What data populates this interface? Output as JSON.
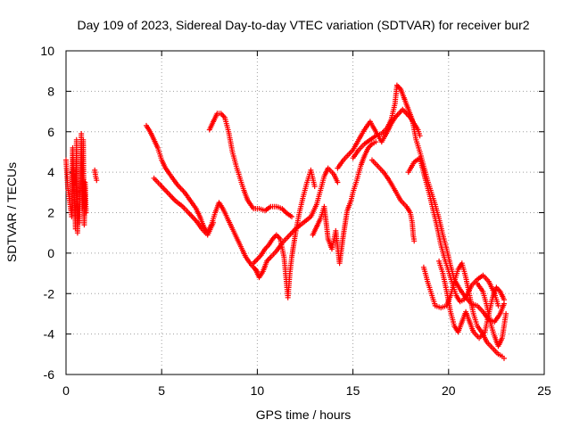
{
  "chart_data": {
    "type": "scatter",
    "title": "Day 109 of 2023, Sidereal Day-to-day VTEC variation (SDTVAR) for receiver bur2",
    "xlabel": "GPS time / hours",
    "ylabel": "SDTVAR / TECUs",
    "xlim": [
      0,
      25
    ],
    "ylim": [
      -6,
      10
    ],
    "xticks": [
      0,
      5,
      10,
      15,
      20,
      25
    ],
    "yticks": [
      -6,
      -4,
      -2,
      0,
      2,
      4,
      6,
      8,
      10
    ],
    "grid": true,
    "marker": "+",
    "color": "#ff0000",
    "series": [
      {
        "name": "s1",
        "points": [
          [
            0.0,
            4.6
          ],
          [
            0.1,
            3.2
          ],
          [
            0.2,
            2.5
          ],
          [
            0.3,
            1.8
          ],
          [
            0.35,
            5.2
          ],
          [
            0.4,
            3.6
          ],
          [
            0.5,
            1.2
          ],
          [
            0.55,
            5.6
          ],
          [
            0.6,
            1.0
          ],
          [
            0.65,
            2.4
          ],
          [
            0.7,
            1.5
          ],
          [
            0.75,
            3.0
          ],
          [
            0.8,
            5.9
          ],
          [
            0.85,
            2.2
          ],
          [
            0.9,
            5.6
          ],
          [
            0.95,
            1.4
          ],
          [
            1.0,
            3.5
          ],
          [
            1.05,
            2.0
          ]
        ]
      },
      {
        "name": "s2",
        "points": [
          [
            1.5,
            4.1
          ],
          [
            1.55,
            3.8
          ],
          [
            1.6,
            3.6
          ]
        ]
      },
      {
        "name": "s3",
        "points": [
          [
            4.2,
            6.3
          ],
          [
            4.4,
            6.0
          ],
          [
            4.6,
            5.6
          ],
          [
            4.8,
            5.2
          ],
          [
            5.0,
            4.6
          ],
          [
            5.2,
            4.2
          ],
          [
            5.5,
            3.8
          ],
          [
            5.8,
            3.4
          ],
          [
            6.2,
            3.0
          ],
          [
            6.5,
            2.6
          ],
          [
            6.8,
            2.2
          ],
          [
            7.0,
            1.8
          ],
          [
            7.2,
            1.3
          ],
          [
            7.4,
            1.0
          ],
          [
            7.6,
            1.4
          ],
          [
            7.8,
            2.0
          ],
          [
            8.0,
            2.5
          ],
          [
            8.2,
            2.2
          ],
          [
            8.5,
            1.6
          ],
          [
            8.8,
            1.0
          ],
          [
            9.1,
            0.4
          ],
          [
            9.4,
            -0.2
          ],
          [
            9.7,
            -0.6
          ],
          [
            10.0,
            -0.9
          ]
        ]
      },
      {
        "name": "s4",
        "points": [
          [
            4.6,
            3.7
          ],
          [
            4.9,
            3.4
          ],
          [
            5.3,
            3.0
          ],
          [
            5.7,
            2.6
          ],
          [
            6.1,
            2.3
          ],
          [
            6.4,
            2.0
          ],
          [
            6.8,
            1.6
          ],
          [
            7.1,
            1.2
          ],
          [
            7.4,
            0.9
          ],
          [
            7.7,
            1.5
          ]
        ]
      },
      {
        "name": "s5",
        "points": [
          [
            7.5,
            6.1
          ],
          [
            7.7,
            6.5
          ],
          [
            7.9,
            6.9
          ],
          [
            8.1,
            6.9
          ],
          [
            8.3,
            6.7
          ],
          [
            8.5,
            6.0
          ],
          [
            8.7,
            5.0
          ],
          [
            8.9,
            4.3
          ],
          [
            9.1,
            3.7
          ],
          [
            9.3,
            3.1
          ],
          [
            9.5,
            2.6
          ],
          [
            9.8,
            2.2
          ],
          [
            10.1,
            2.2
          ],
          [
            10.4,
            2.1
          ],
          [
            10.7,
            2.3
          ],
          [
            11.0,
            2.3
          ],
          [
            11.3,
            2.2
          ],
          [
            11.5,
            2.0
          ],
          [
            11.8,
            1.8
          ]
        ]
      },
      {
        "name": "s6",
        "points": [
          [
            9.8,
            -0.5
          ],
          [
            10.0,
            -0.3
          ],
          [
            10.2,
            -0.1
          ],
          [
            10.4,
            0.2
          ],
          [
            10.6,
            0.4
          ],
          [
            10.8,
            0.7
          ],
          [
            11.0,
            0.9
          ],
          [
            11.2,
            0.7
          ],
          [
            11.4,
            -0.2
          ],
          [
            11.5,
            -1.2
          ],
          [
            11.6,
            -2.2
          ],
          [
            11.7,
            -1.0
          ],
          [
            11.8,
            -0.2
          ],
          [
            12.0,
            1.0
          ],
          [
            12.2,
            2.0
          ],
          [
            12.4,
            2.8
          ],
          [
            12.6,
            3.5
          ],
          [
            12.8,
            4.1
          ],
          [
            13.0,
            3.3
          ]
        ]
      },
      {
        "name": "s7",
        "points": [
          [
            9.9,
            -0.8
          ],
          [
            10.1,
            -1.2
          ],
          [
            10.3,
            -0.9
          ],
          [
            10.5,
            -0.4
          ],
          [
            10.7,
            -0.2
          ],
          [
            11.0,
            0.1
          ],
          [
            11.3,
            0.5
          ],
          [
            11.6,
            0.8
          ],
          [
            12.0,
            1.2
          ],
          [
            12.4,
            1.5
          ],
          [
            12.8,
            1.8
          ],
          [
            13.1,
            2.4
          ],
          [
            13.3,
            3.1
          ],
          [
            13.5,
            3.8
          ],
          [
            13.7,
            4.2
          ],
          [
            14.0,
            3.9
          ],
          [
            14.2,
            3.5
          ]
        ]
      },
      {
        "name": "s8",
        "points": [
          [
            12.9,
            0.9
          ],
          [
            13.1,
            1.3
          ],
          [
            13.3,
            1.7
          ],
          [
            13.5,
            2.3
          ],
          [
            13.7,
            0.7
          ],
          [
            13.9,
            0.2
          ],
          [
            14.1,
            1.1
          ],
          [
            14.3,
            -0.5
          ],
          [
            14.5,
            0.9
          ],
          [
            14.7,
            2.1
          ],
          [
            14.9,
            2.6
          ],
          [
            15.0,
            3.0
          ],
          [
            15.2,
            3.6
          ],
          [
            15.4,
            4.3
          ],
          [
            15.6,
            4.8
          ],
          [
            15.8,
            5.2
          ],
          [
            16.0,
            5.4
          ],
          [
            16.2,
            5.5
          ]
        ]
      },
      {
        "name": "s9",
        "points": [
          [
            14.2,
            4.2
          ],
          [
            14.5,
            4.6
          ],
          [
            14.8,
            4.9
          ],
          [
            15.0,
            5.1
          ],
          [
            15.3,
            5.6
          ],
          [
            15.6,
            6.1
          ],
          [
            15.9,
            6.5
          ],
          [
            16.2,
            6.0
          ],
          [
            16.5,
            5.5
          ],
          [
            16.8,
            6.0
          ],
          [
            17.0,
            6.4
          ],
          [
            17.2,
            6.7
          ],
          [
            17.4,
            6.9
          ],
          [
            17.6,
            7.1
          ],
          [
            17.8,
            6.9
          ],
          [
            18.0,
            6.7
          ],
          [
            18.2,
            6.4
          ],
          [
            18.4,
            6.1
          ],
          [
            18.5,
            5.8
          ]
        ]
      },
      {
        "name": "s10",
        "points": [
          [
            15.0,
            4.7
          ],
          [
            15.3,
            5.1
          ],
          [
            15.6,
            5.4
          ],
          [
            15.9,
            5.6
          ],
          [
            16.2,
            5.8
          ],
          [
            16.5,
            5.9
          ],
          [
            16.8,
            6.2
          ],
          [
            17.0,
            6.6
          ],
          [
            17.2,
            7.4
          ],
          [
            17.3,
            8.3
          ],
          [
            17.5,
            8.1
          ],
          [
            17.7,
            7.6
          ],
          [
            17.9,
            7.1
          ],
          [
            18.1,
            6.6
          ],
          [
            18.3,
            5.6
          ],
          [
            18.5,
            5.0
          ],
          [
            18.7,
            4.3
          ],
          [
            18.9,
            3.6
          ],
          [
            19.1,
            3.0
          ],
          [
            19.3,
            2.4
          ],
          [
            19.5,
            1.7
          ],
          [
            19.7,
            0.9
          ],
          [
            19.9,
            0.2
          ],
          [
            20.1,
            -0.6
          ],
          [
            20.3,
            -1.3
          ],
          [
            20.6,
            -1.8
          ],
          [
            20.9,
            -2.2
          ],
          [
            21.2,
            -2.5
          ],
          [
            21.5,
            -2.6
          ],
          [
            21.8,
            -2.9
          ],
          [
            22.1,
            -3.3
          ],
          [
            22.4,
            -3.4
          ],
          [
            22.7,
            -3.0
          ],
          [
            22.9,
            -2.5
          ]
        ]
      },
      {
        "name": "s11",
        "points": [
          [
            16.0,
            4.6
          ],
          [
            16.3,
            4.3
          ],
          [
            16.6,
            4.0
          ],
          [
            16.9,
            3.6
          ],
          [
            17.2,
            3.1
          ],
          [
            17.5,
            2.6
          ],
          [
            17.8,
            2.3
          ],
          [
            18.0,
            2.0
          ],
          [
            18.1,
            1.5
          ],
          [
            18.15,
            0.9
          ],
          [
            18.2,
            0.6
          ]
        ]
      },
      {
        "name": "s12",
        "points": [
          [
            17.9,
            4.0
          ],
          [
            18.2,
            4.5
          ],
          [
            18.5,
            4.7
          ],
          [
            18.8,
            3.6
          ],
          [
            19.0,
            2.9
          ],
          [
            19.2,
            2.1
          ],
          [
            19.4,
            1.3
          ],
          [
            19.6,
            0.4
          ],
          [
            19.8,
            -0.3
          ],
          [
            20.0,
            -0.9
          ],
          [
            20.2,
            -1.5
          ],
          [
            20.4,
            -2.1
          ],
          [
            20.6,
            -2.4
          ],
          [
            20.8,
            -2.3
          ],
          [
            21.0,
            -2.0
          ],
          [
            21.2,
            -1.6
          ],
          [
            21.5,
            -1.3
          ],
          [
            21.8,
            -1.1
          ],
          [
            22.1,
            -1.4
          ],
          [
            22.4,
            -2.0
          ],
          [
            22.6,
            -2.6
          ]
        ]
      },
      {
        "name": "s13",
        "points": [
          [
            18.7,
            -0.7
          ],
          [
            18.9,
            -1.4
          ],
          [
            19.1,
            -2.0
          ],
          [
            19.3,
            -2.6
          ],
          [
            19.6,
            -2.7
          ],
          [
            19.9,
            -2.6
          ],
          [
            20.1,
            -2.1
          ],
          [
            20.3,
            -1.4
          ],
          [
            20.5,
            -0.8
          ],
          [
            20.7,
            -0.5
          ],
          [
            20.9,
            -1.2
          ],
          [
            21.1,
            -2.1
          ],
          [
            21.3,
            -3.0
          ],
          [
            21.5,
            -3.6
          ],
          [
            21.8,
            -4.0
          ],
          [
            22.0,
            -4.4
          ],
          [
            22.3,
            -4.7
          ],
          [
            22.6,
            -5.0
          ],
          [
            22.8,
            -5.1
          ],
          [
            22.9,
            -5.2
          ]
        ]
      },
      {
        "name": "s14",
        "points": [
          [
            19.5,
            -0.4
          ],
          [
            19.7,
            -1.0
          ],
          [
            19.9,
            -1.9
          ],
          [
            20.1,
            -2.9
          ],
          [
            20.3,
            -3.6
          ],
          [
            20.5,
            -3.9
          ],
          [
            20.7,
            -3.4
          ],
          [
            20.9,
            -2.9
          ],
          [
            21.1,
            -3.4
          ],
          [
            21.3,
            -3.9
          ],
          [
            21.6,
            -4.2
          ],
          [
            21.9,
            -3.9
          ],
          [
            22.1,
            -3.0
          ],
          [
            22.3,
            -2.2
          ],
          [
            22.5,
            -1.7
          ],
          [
            22.7,
            -1.9
          ],
          [
            22.9,
            -2.3
          ]
        ]
      },
      {
        "name": "s15",
        "points": [
          [
            21.5,
            -1.5
          ],
          [
            21.8,
            -1.9
          ],
          [
            22.0,
            -2.6
          ],
          [
            22.2,
            -3.5
          ],
          [
            22.4,
            -4.1
          ],
          [
            22.6,
            -4.6
          ],
          [
            22.8,
            -4.2
          ],
          [
            22.9,
            -3.6
          ],
          [
            23.0,
            -3.0
          ]
        ]
      }
    ]
  }
}
